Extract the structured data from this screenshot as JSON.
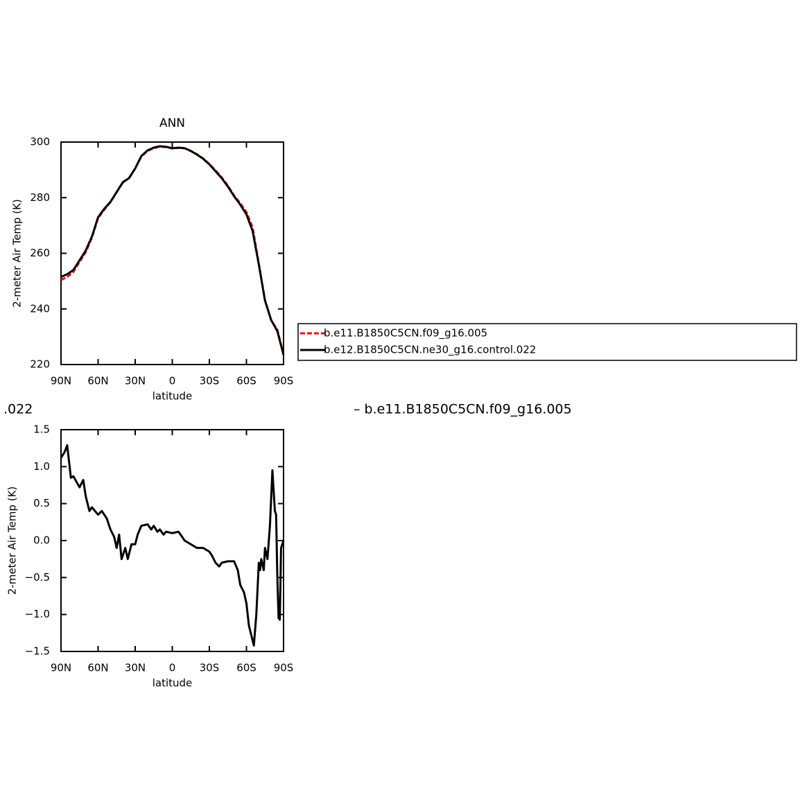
{
  "chart_data": [
    {
      "type": "line",
      "title": "ANN",
      "xlabel": "latitude",
      "ylabel": "2-meter Air Temp (K)",
      "xlim": [
        90,
        -90
      ],
      "xticks": [
        {
          "value": 90,
          "label": "90N"
        },
        {
          "value": 60,
          "label": "60N"
        },
        {
          "value": 30,
          "label": "30N"
        },
        0,
        {
          "value": -30,
          "label": "30S"
        },
        {
          "value": -60,
          "label": "60S"
        },
        {
          "value": -90,
          "label": "90S"
        }
      ],
      "ylim": [
        220,
        300
      ],
      "yticks": [
        220,
        240,
        260,
        280,
        300
      ],
      "legend_position": "right",
      "x": [
        90,
        85,
        80,
        75,
        70,
        65,
        60,
        55,
        50,
        45,
        40,
        35,
        30,
        25,
        20,
        15,
        10,
        5,
        0,
        -5,
        -10,
        -15,
        -20,
        -25,
        -30,
        -35,
        -40,
        -45,
        -50,
        -55,
        -60,
        -65,
        -70,
        -75,
        -80,
        -85,
        -90
      ],
      "series": [
        {
          "name": "b.e11.B1850C5CN.f09_g16.005",
          "color": "#ff0000",
          "line_style": "dashed",
          "values": [
            250.4,
            251.5,
            253.3,
            256.9,
            260.4,
            265.6,
            272.7,
            275.7,
            278.4,
            282,
            285.6,
            287.1,
            290.5,
            294.8,
            296.8,
            297.8,
            298.4,
            298.2,
            297.7,
            297.9,
            297.8,
            296.8,
            295.6,
            294.1,
            292.1,
            289.8,
            287.3,
            284.3,
            280.8,
            278,
            274.8,
            269.3,
            256.3,
            243.2,
            235.9,
            232.5,
            223.5
          ]
        },
        {
          "name": "b.e12.B1850C5CN.ne30_g16.control.022",
          "color": "#000000",
          "line_style": "solid",
          "values": [
            251.5,
            252.5,
            254,
            257.5,
            261,
            266,
            273,
            276,
            278.5,
            282,
            285.5,
            287,
            290.5,
            295,
            297,
            298,
            298.5,
            298.3,
            297.8,
            298,
            297.8,
            296.8,
            295.5,
            294,
            292,
            289.5,
            287,
            284,
            280.5,
            277.5,
            274,
            268,
            256,
            243,
            236,
            232,
            223.5
          ]
        }
      ]
    },
    {
      "type": "line",
      "xlabel": "latitude",
      "ylabel": "2-meter Air Temp (K)",
      "annotations": [
        ".022",
        "– b.e11.B1850C5CN.f09_g16.005"
      ],
      "xlim": [
        90,
        -90
      ],
      "xticks": [
        {
          "value": 90,
          "label": "90N"
        },
        {
          "value": 60,
          "label": "60N"
        },
        {
          "value": 30,
          "label": "30N"
        },
        0,
        {
          "value": -30,
          "label": "30S"
        },
        {
          "value": -60,
          "label": "60S"
        },
        {
          "value": -90,
          "label": "90S"
        }
      ],
      "ylim": [
        -1.5,
        1.5
      ],
      "yticks": [
        {
          "value": -1.5,
          "label": "−1.5"
        },
        {
          "value": -1,
          "label": "−1.0"
        },
        {
          "value": -0.5,
          "label": "−0.5"
        },
        {
          "value": 0,
          "label": "0.0"
        },
        0.5,
        {
          "value": 1,
          "label": "1.0"
        },
        1.5
      ],
      "x": [
        90,
        87,
        85,
        82,
        80,
        75,
        72,
        70,
        67,
        65,
        60,
        57,
        53,
        50,
        47,
        45,
        43,
        41,
        38,
        36,
        33,
        30,
        28,
        25,
        20,
        17,
        15,
        12,
        10,
        7,
        5,
        0,
        -5,
        -8,
        -10,
        -15,
        -20,
        -25,
        -30,
        -32,
        -35,
        -38,
        -40,
        -45,
        -50,
        -53,
        -55,
        -58,
        -60,
        -62,
        -66,
        -68,
        -70,
        -71,
        -72,
        -74,
        -75,
        -77,
        -79,
        -81,
        -83,
        -84,
        -85,
        -86,
        -87,
        -88,
        -90
      ],
      "series": [
        {
          "color": "#000000",
          "line_style": "solid",
          "values": [
            1.12,
            1.2,
            1.29,
            0.85,
            0.87,
            0.72,
            0.82,
            0.6,
            0.4,
            0.45,
            0.35,
            0.4,
            0.3,
            0.15,
            0.05,
            -0.1,
            0.08,
            -0.25,
            -0.1,
            -0.25,
            -0.05,
            -0.05,
            0.08,
            0.2,
            0.22,
            0.15,
            0.2,
            0.12,
            0.15,
            0.08,
            0.12,
            0.1,
            0.12,
            0.05,
            0,
            -0.05,
            -0.1,
            -0.1,
            -0.15,
            -0.2,
            -0.3,
            -0.35,
            -0.3,
            -0.28,
            -0.28,
            -0.4,
            -0.6,
            -0.7,
            -0.85,
            -1.15,
            -1.42,
            -1,
            -0.3,
            -0.4,
            -0.25,
            -0.4,
            -0.1,
            -0.25,
            0.2,
            0.95,
            0.4,
            0.35,
            -0.5,
            -1.05,
            -1.07,
            -0.1,
            0
          ]
        }
      ]
    }
  ]
}
